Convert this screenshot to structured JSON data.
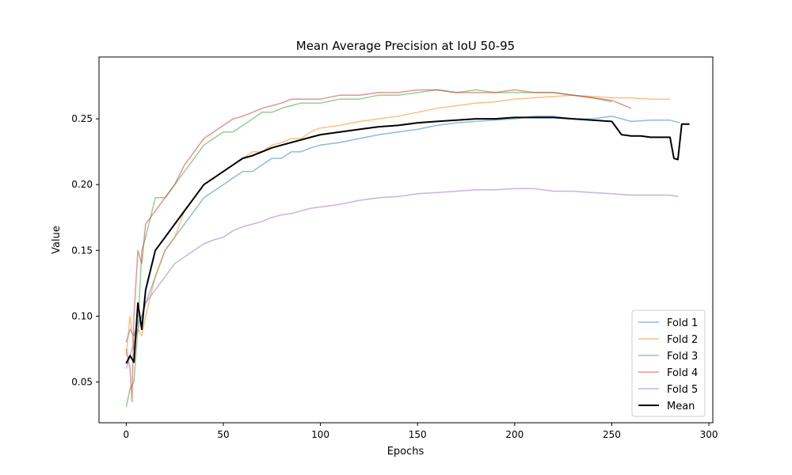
{
  "chart_data": {
    "type": "line",
    "title": "Mean Average Precision at IoU 50-95",
    "xlabel": "Epochs",
    "ylabel": "Value",
    "xlim": [
      -14,
      302
    ],
    "ylim": [
      0.019,
      0.297
    ],
    "xticks": [
      0,
      50,
      100,
      150,
      200,
      250,
      300
    ],
    "yticks": [
      0.05,
      0.1,
      0.15,
      0.2,
      0.25
    ],
    "ytick_labels": [
      "0.05",
      "0.10",
      "0.15",
      "0.20",
      "0.25"
    ],
    "grid": false,
    "legend_position": "lower-right",
    "series": [
      {
        "name": "Fold 1",
        "color": "#1f77b4",
        "alpha": 0.5,
        "width": 1.5,
        "x": [
          0,
          2,
          4,
          6,
          8,
          10,
          15,
          20,
          25,
          30,
          35,
          40,
          45,
          50,
          55,
          60,
          65,
          70,
          75,
          80,
          85,
          90,
          95,
          100,
          110,
          120,
          130,
          140,
          150,
          160,
          170,
          180,
          190,
          200,
          210,
          220,
          230,
          240,
          250,
          260,
          270,
          280,
          285
        ],
        "y": [
          0.08,
          0.09,
          0.085,
          0.095,
          0.1,
          0.11,
          0.13,
          0.15,
          0.16,
          0.17,
          0.18,
          0.19,
          0.195,
          0.2,
          0.205,
          0.21,
          0.21,
          0.215,
          0.22,
          0.22,
          0.225,
          0.225,
          0.228,
          0.23,
          0.232,
          0.235,
          0.238,
          0.24,
          0.242,
          0.245,
          0.247,
          0.248,
          0.249,
          0.25,
          0.252,
          0.252,
          0.25,
          0.25,
          0.252,
          0.248,
          0.249,
          0.249,
          0.247
        ]
      },
      {
        "name": "Fold 2",
        "color": "#ff7f0e",
        "alpha": 0.5,
        "width": 1.5,
        "x": [
          0,
          2,
          4,
          6,
          8,
          10,
          15,
          20,
          25,
          30,
          35,
          40,
          45,
          50,
          55,
          60,
          65,
          70,
          75,
          80,
          85,
          90,
          95,
          100,
          110,
          120,
          130,
          140,
          150,
          160,
          170,
          180,
          190,
          200,
          210,
          220,
          230,
          240,
          250,
          260,
          270,
          280
        ],
        "y": [
          0.07,
          0.1,
          0.075,
          0.09,
          0.085,
          0.1,
          0.13,
          0.15,
          0.16,
          0.18,
          0.19,
          0.2,
          0.205,
          0.21,
          0.215,
          0.22,
          0.225,
          0.225,
          0.23,
          0.232,
          0.235,
          0.235,
          0.24,
          0.243,
          0.245,
          0.248,
          0.25,
          0.252,
          0.255,
          0.258,
          0.26,
          0.262,
          0.263,
          0.265,
          0.266,
          0.267,
          0.268,
          0.267,
          0.266,
          0.266,
          0.265,
          0.265
        ]
      },
      {
        "name": "Fold 3",
        "color": "#2ca02c",
        "alpha": 0.5,
        "width": 1.5,
        "x": [
          0,
          2,
          4,
          6,
          8,
          10,
          15,
          20,
          25,
          30,
          35,
          40,
          45,
          50,
          55,
          60,
          65,
          70,
          75,
          80,
          85,
          90,
          95,
          100,
          110,
          120,
          130,
          140,
          150,
          160,
          170,
          180,
          190,
          200,
          210,
          220,
          230,
          240,
          250
        ],
        "y": [
          0.031,
          0.045,
          0.05,
          0.09,
          0.15,
          0.16,
          0.19,
          0.19,
          0.2,
          0.21,
          0.22,
          0.23,
          0.235,
          0.24,
          0.24,
          0.245,
          0.25,
          0.255,
          0.255,
          0.258,
          0.26,
          0.262,
          0.262,
          0.262,
          0.265,
          0.265,
          0.268,
          0.268,
          0.27,
          0.272,
          0.27,
          0.272,
          0.27,
          0.27,
          0.27,
          0.27,
          0.268,
          0.266,
          0.263
        ]
      },
      {
        "name": "Fold 4",
        "color": "#d62728",
        "alpha": 0.5,
        "width": 1.5,
        "x": [
          0,
          2,
          3,
          4,
          6,
          8,
          10,
          15,
          20,
          25,
          30,
          35,
          40,
          45,
          50,
          55,
          60,
          65,
          70,
          75,
          80,
          85,
          90,
          95,
          100,
          110,
          120,
          130,
          140,
          150,
          160,
          170,
          180,
          190,
          200,
          210,
          220,
          230,
          240,
          250,
          260
        ],
        "y": [
          0.075,
          0.06,
          0.035,
          0.1,
          0.15,
          0.14,
          0.17,
          0.18,
          0.19,
          0.2,
          0.215,
          0.225,
          0.235,
          0.24,
          0.245,
          0.25,
          0.252,
          0.255,
          0.258,
          0.26,
          0.262,
          0.265,
          0.265,
          0.265,
          0.265,
          0.268,
          0.268,
          0.27,
          0.27,
          0.272,
          0.272,
          0.27,
          0.27,
          0.27,
          0.272,
          0.27,
          0.27,
          0.268,
          0.266,
          0.264,
          0.258
        ]
      },
      {
        "name": "Fold 5",
        "color": "#9467bd",
        "alpha": 0.5,
        "width": 1.5,
        "x": [
          0,
          2,
          4,
          6,
          8,
          10,
          15,
          20,
          25,
          30,
          35,
          40,
          45,
          50,
          55,
          60,
          65,
          70,
          75,
          80,
          85,
          90,
          95,
          100,
          110,
          120,
          130,
          140,
          150,
          160,
          170,
          180,
          190,
          200,
          210,
          220,
          230,
          240,
          250,
          260,
          270,
          280,
          284
        ],
        "y": [
          0.06,
          0.07,
          0.08,
          0.09,
          0.1,
          0.11,
          0.12,
          0.13,
          0.14,
          0.145,
          0.15,
          0.155,
          0.158,
          0.16,
          0.165,
          0.168,
          0.17,
          0.172,
          0.175,
          0.177,
          0.178,
          0.18,
          0.182,
          0.183,
          0.185,
          0.188,
          0.19,
          0.191,
          0.193,
          0.194,
          0.195,
          0.196,
          0.196,
          0.197,
          0.197,
          0.195,
          0.195,
          0.194,
          0.193,
          0.192,
          0.192,
          0.192,
          0.191
        ]
      },
      {
        "name": "Mean",
        "color": "#000000",
        "alpha": 1.0,
        "width": 2,
        "x": [
          0,
          2,
          4,
          6,
          8,
          10,
          15,
          20,
          25,
          30,
          35,
          40,
          45,
          50,
          55,
          60,
          65,
          70,
          75,
          80,
          85,
          90,
          95,
          100,
          110,
          120,
          130,
          140,
          150,
          160,
          170,
          180,
          190,
          200,
          210,
          220,
          230,
          240,
          250,
          255,
          260,
          265,
          270,
          275,
          280,
          282,
          284,
          286,
          290
        ],
        "y": [
          0.064,
          0.07,
          0.065,
          0.11,
          0.09,
          0.12,
          0.15,
          0.16,
          0.17,
          0.18,
          0.19,
          0.2,
          0.205,
          0.21,
          0.215,
          0.22,
          0.222,
          0.225,
          0.228,
          0.23,
          0.232,
          0.234,
          0.236,
          0.238,
          0.24,
          0.242,
          0.244,
          0.245,
          0.247,
          0.248,
          0.249,
          0.25,
          0.25,
          0.251,
          0.251,
          0.251,
          0.25,
          0.249,
          0.248,
          0.238,
          0.237,
          0.237,
          0.236,
          0.236,
          0.236,
          0.22,
          0.219,
          0.246,
          0.246
        ]
      }
    ]
  }
}
